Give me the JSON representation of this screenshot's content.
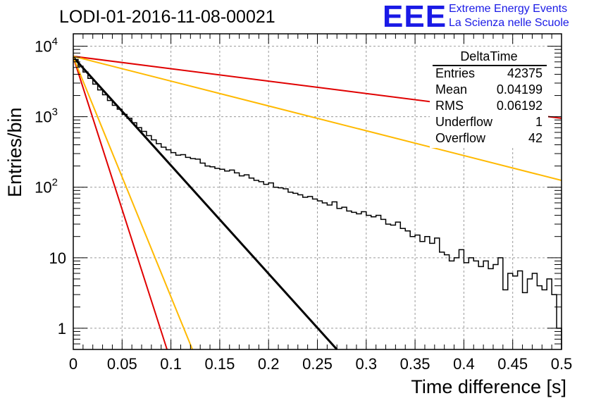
{
  "title": "LODI-01-2016-11-08-00021",
  "logo": {
    "text": "EEE",
    "line1": "Extreme Energy Events",
    "line2": "La Scienza nelle Scuole",
    "color": "#1a1ae6"
  },
  "stats_box": {
    "name": "DeltaTime",
    "rows": [
      {
        "label": "Entries",
        "value": "42375"
      },
      {
        "label": "Mean",
        "value": "0.04199"
      },
      {
        "label": "RMS",
        "value": "0.06192"
      },
      {
        "label": "Underflow",
        "value": "1"
      },
      {
        "label": "Overflow",
        "value": "42"
      }
    ]
  },
  "chart_data": {
    "type": "line",
    "xlabel": "Time difference [s]",
    "ylabel": "Entries/bin",
    "xlim": [
      0,
      0.5
    ],
    "ylim": [
      0.5,
      15000
    ],
    "yscale": "log",
    "grid": true,
    "x_ticks": [
      "0",
      "0.05",
      "0.1",
      "0.15",
      "0.2",
      "0.25",
      "0.3",
      "0.35",
      "0.4",
      "0.45",
      "0.5"
    ],
    "y_ticks": [
      {
        "value": 10000,
        "label": "10",
        "exp": "4"
      },
      {
        "value": 1000,
        "label": "10",
        "exp": "3"
      },
      {
        "value": 100,
        "label": "10",
        "exp": "2"
      },
      {
        "value": 10,
        "label": "10",
        "exp": ""
      },
      {
        "value": 1,
        "label": "1",
        "exp": ""
      }
    ],
    "histogram": {
      "name": "DeltaTime",
      "color": "#000000",
      "bin_width": 0.005,
      "x": [
        0.0,
        0.005,
        0.01,
        0.015,
        0.02,
        0.025,
        0.03,
        0.035,
        0.04,
        0.045,
        0.05,
        0.055,
        0.06,
        0.065,
        0.07,
        0.075,
        0.08,
        0.085,
        0.09,
        0.095,
        0.1,
        0.105,
        0.11,
        0.115,
        0.12,
        0.125,
        0.13,
        0.135,
        0.14,
        0.145,
        0.15,
        0.155,
        0.16,
        0.165,
        0.17,
        0.175,
        0.18,
        0.185,
        0.19,
        0.195,
        0.2,
        0.205,
        0.21,
        0.215,
        0.22,
        0.225,
        0.23,
        0.235,
        0.24,
        0.245,
        0.25,
        0.255,
        0.26,
        0.265,
        0.27,
        0.275,
        0.28,
        0.285,
        0.29,
        0.295,
        0.3,
        0.305,
        0.31,
        0.315,
        0.32,
        0.325,
        0.33,
        0.335,
        0.34,
        0.345,
        0.35,
        0.355,
        0.36,
        0.365,
        0.37,
        0.375,
        0.38,
        0.385,
        0.39,
        0.395,
        0.4,
        0.405,
        0.41,
        0.415,
        0.42,
        0.425,
        0.43,
        0.435,
        0.44,
        0.445,
        0.45,
        0.455,
        0.46,
        0.465,
        0.47,
        0.475,
        0.48,
        0.485,
        0.49,
        0.495
      ],
      "values": [
        6500,
        5200,
        4300,
        3500,
        2900,
        2400,
        2050,
        1700,
        1450,
        1280,
        1080,
        950,
        820,
        700,
        620,
        540,
        470,
        415,
        370,
        340,
        310,
        285,
        290,
        265,
        255,
        250,
        220,
        200,
        195,
        185,
        180,
        170,
        175,
        160,
        145,
        150,
        135,
        125,
        120,
        110,
        115,
        100,
        98,
        95,
        85,
        82,
        78,
        72,
        74,
        68,
        64,
        60,
        56,
        62,
        50,
        52,
        46,
        44,
        42,
        45,
        40,
        38,
        40,
        35,
        30,
        29,
        32,
        26,
        24,
        20,
        21,
        17,
        20,
        16,
        19,
        12,
        11,
        9,
        10,
        13,
        8.5,
        10,
        9,
        7.5,
        9,
        7,
        8,
        10,
        3.5,
        6,
        5.5,
        6.5,
        3.2,
        5,
        6,
        4,
        3.5,
        5,
        3,
        1
      ]
    },
    "fits": [
      {
        "name": "black line",
        "color": "#000000",
        "x": [
          0,
          0.27
        ],
        "y": [
          7000,
          0.5
        ]
      },
      {
        "name": "red steep",
        "color": "#e00000",
        "x": [
          0,
          0.096
        ],
        "y": [
          7000,
          0.5
        ]
      },
      {
        "name": "orange steep",
        "color": "#ffb900",
        "x": [
          0,
          0.122
        ],
        "y": [
          7000,
          0.5
        ]
      },
      {
        "name": "red shallow",
        "color": "#e00000",
        "x": [
          0,
          0.5
        ],
        "y": [
          7200,
          950
        ]
      },
      {
        "name": "orange shallow",
        "color": "#ffb900",
        "x": [
          0,
          0.5
        ],
        "y": [
          7200,
          125
        ]
      }
    ]
  }
}
